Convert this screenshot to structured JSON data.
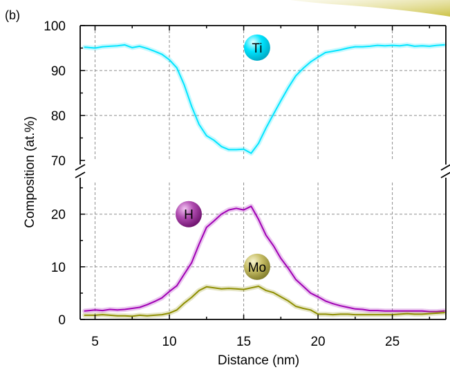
{
  "panel_label": "(b)",
  "chart_data": {
    "type": "line",
    "xlabel": "Distance (nm)",
    "ylabel": "Composition (at.%)",
    "xlim": [
      4,
      28.6
    ],
    "x_ticks": [
      5,
      10,
      15,
      20,
      25
    ],
    "grid": true,
    "axis_break": true,
    "y_upper": {
      "ylim": [
        70,
        100
      ],
      "ticks": [
        70,
        80,
        90,
        100
      ]
    },
    "y_lower": {
      "ylim": [
        0,
        26
      ],
      "ticks": [
        0,
        10,
        20
      ]
    },
    "x": [
      4.3,
      5,
      5.5,
      6,
      6.5,
      7,
      7.5,
      8,
      8.5,
      9,
      9.5,
      10,
      10.5,
      11,
      11.5,
      12,
      12.5,
      13,
      13.5,
      14,
      14.5,
      15,
      15.5,
      16,
      16.5,
      17,
      17.5,
      18,
      18.5,
      19,
      19.5,
      20,
      20.5,
      21,
      21.5,
      22,
      22.5,
      23,
      23.5,
      24,
      24.5,
      25,
      25.5,
      26,
      26.5,
      27,
      27.5,
      28,
      28.5
    ],
    "series": [
      {
        "name": "Ti",
        "axis": "upper",
        "color": "#00e5ff",
        "values": [
          95.2,
          95.0,
          95.3,
          95.4,
          95.5,
          95.7,
          95.1,
          95.4,
          94.9,
          94.3,
          93.6,
          92.4,
          90.6,
          86.8,
          82.0,
          78.0,
          75.5,
          74.5,
          73.1,
          72.4,
          72.4,
          72.5,
          71.6,
          73.8,
          77.2,
          80.3,
          83.3,
          86.2,
          88.8,
          90.5,
          91.9,
          93.0,
          94.0,
          94.3,
          94.6,
          95.0,
          95.3,
          95.3,
          95.4,
          95.6,
          95.5,
          95.6,
          95.5,
          95.7,
          95.4,
          95.5,
          95.4,
          95.6,
          95.7
        ]
      },
      {
        "name": "H",
        "axis": "lower",
        "color": "#a000b4",
        "values": [
          1.6,
          1.8,
          1.7,
          1.9,
          1.8,
          1.9,
          2.1,
          2.3,
          2.8,
          3.4,
          4.1,
          5.3,
          6.4,
          8.6,
          10.8,
          14.3,
          17.5,
          18.7,
          20.0,
          20.8,
          21.1,
          20.8,
          21.5,
          19.0,
          16.0,
          14.0,
          11.6,
          9.7,
          7.6,
          6.3,
          5.0,
          4.3,
          3.5,
          3.0,
          2.6,
          2.3,
          2.0,
          1.9,
          1.7,
          1.7,
          1.6,
          1.6,
          1.6,
          1.6,
          1.6,
          1.6,
          1.5,
          1.5,
          1.6
        ]
      },
      {
        "name": "Mo",
        "axis": "lower",
        "color": "#8e8e00",
        "values": [
          0.8,
          0.8,
          0.9,
          0.8,
          0.7,
          0.7,
          0.6,
          0.8,
          0.7,
          0.8,
          0.9,
          1.2,
          1.8,
          3.1,
          4.2,
          5.5,
          6.2,
          6.0,
          5.8,
          5.9,
          5.8,
          5.7,
          6.0,
          6.3,
          5.5,
          5.1,
          4.3,
          3.5,
          2.5,
          2.1,
          1.8,
          1.0,
          1.0,
          0.9,
          1.0,
          1.0,
          0.9,
          0.9,
          0.9,
          0.9,
          0.9,
          0.9,
          1.0,
          1.1,
          1.0,
          1.0,
          1.1,
          1.2,
          1.3
        ]
      }
    ],
    "annotations": [
      {
        "text": "Ti",
        "x": 15.9,
        "y": 95.1,
        "axis": "upper",
        "color": "#00d4ee"
      },
      {
        "text": "H",
        "x": 11.3,
        "y": 20.0,
        "axis": "lower",
        "color": "#8a1a8a"
      },
      {
        "text": "Mo",
        "x": 15.9,
        "y": 10.0,
        "axis": "lower",
        "color": "#a8a045"
      }
    ]
  }
}
